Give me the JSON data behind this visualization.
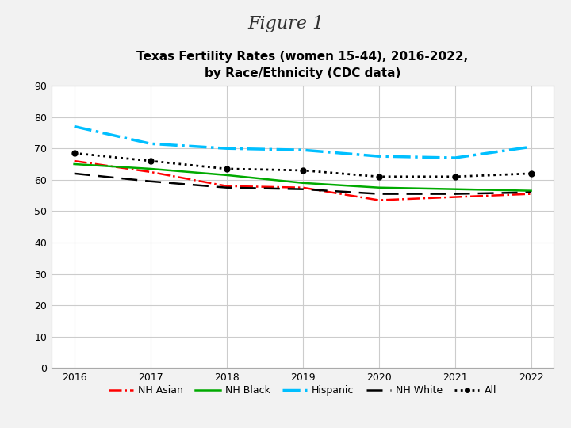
{
  "title_main": "Figure 1",
  "title_sub": "Texas Fertility Rates (women 15-44), 2016-2022,\nby Race/Ethnicity (CDC data)",
  "years": [
    2016,
    2017,
    2018,
    2019,
    2020,
    2021,
    2022
  ],
  "series": {
    "NH Asian": {
      "values": [
        66.0,
        62.5,
        58.0,
        57.5,
        53.5,
        54.5,
        55.5
      ],
      "color": "#FF0000",
      "linestyle": "-.",
      "linewidth": 1.8
    },
    "NH Black": {
      "values": [
        65.0,
        63.5,
        61.5,
        59.0,
        57.5,
        57.0,
        56.5
      ],
      "color": "#00AA00",
      "linestyle": "-",
      "linewidth": 1.8
    },
    "Hispanic": {
      "values": [
        77.0,
        71.5,
        70.0,
        69.5,
        67.5,
        67.0,
        70.5
      ],
      "color": "#00BFFF",
      "linestyle": "-.",
      "linewidth": 2.5
    },
    "NH White": {
      "values": [
        62.0,
        59.5,
        57.5,
        57.0,
        55.5,
        55.5,
        56.0
      ],
      "color": "#000000",
      "linestyle": "--",
      "linewidth": 1.8
    },
    "All": {
      "values": [
        68.5,
        66.0,
        63.5,
        63.0,
        61.0,
        61.0,
        62.0
      ],
      "color": "#000000",
      "linestyle": ":",
      "linewidth": 2.0,
      "dot_size": 5
    }
  },
  "ylim": [
    0,
    90
  ],
  "yticks": [
    0,
    10,
    20,
    30,
    40,
    50,
    60,
    70,
    80,
    90
  ],
  "xticks": [
    2016,
    2017,
    2018,
    2019,
    2020,
    2021,
    2022
  ],
  "background_color": "#F2F2F2",
  "plot_bg_color": "#FFFFFF",
  "grid_color": "#CCCCCC",
  "border_color": "#AAAAAA",
  "title_main_fontsize": 16,
  "title_sub_fontsize": 11,
  "tick_fontsize": 9,
  "legend_fontsize": 9
}
